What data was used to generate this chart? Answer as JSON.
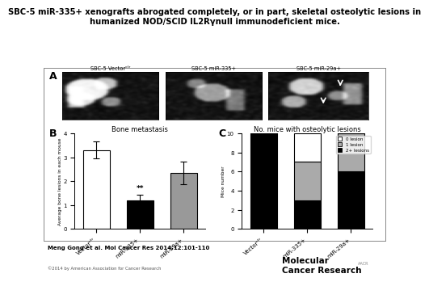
{
  "title_line1": "SBC-5 miR-335+ xenografts abrogated completely, or in part, skeletal osteolytic lesions in",
  "title_line2": "humanized NOD/SCID IL2Rγnull immunodeficient mice.",
  "title_fontsize": 7.2,
  "panel_A_label": "A",
  "panel_A_labels": [
    "SBC-5 Vectorᶜᵗʳ",
    "SBC-5 miR-335+",
    "SBC-5 miR-29a+"
  ],
  "panel_B_label": "B",
  "panel_B_title": "Bone metastasis",
  "panel_B_ylabel": "Average bone lesions in each mouse",
  "panel_B_categories": [
    "Vectorᶜᵗʳ",
    "miR-335+",
    "miR-29a+"
  ],
  "panel_B_values": [
    3.3,
    1.2,
    2.35
  ],
  "panel_B_errors": [
    0.35,
    0.22,
    0.48
  ],
  "panel_B_colors": [
    "white",
    "black",
    "#999999"
  ],
  "panel_B_ylim": [
    0,
    4
  ],
  "panel_B_yticks": [
    0,
    1,
    2,
    3,
    4
  ],
  "panel_C_label": "C",
  "panel_C_title": "No. mice with osteolytic lesions",
  "panel_C_ylabel": "Mice number",
  "panel_C_categories": [
    "Vectorᶜᵗʳ",
    "miR-335+",
    "miR-29a+"
  ],
  "panel_C_zero_lesion": [
    0,
    3,
    0
  ],
  "panel_C_one_lesion": [
    0,
    4,
    4
  ],
  "panel_C_two_plus_lesion": [
    10,
    3,
    6
  ],
  "panel_C_ylim": [
    0,
    10
  ],
  "panel_C_yticks": [
    0,
    2,
    4,
    6,
    8,
    10
  ],
  "panel_C_colors_zero": "white",
  "panel_C_colors_one": "#aaaaaa",
  "panel_C_colors_two": "black",
  "significance_label": "**",
  "citation": "Meng Gong et al. Mol Cancer Res 2014;12:101-110",
  "copyright": "©2014 by American Association for Cancer Research",
  "journal_name": "Molecular\nCancer Research",
  "background_color": "white"
}
